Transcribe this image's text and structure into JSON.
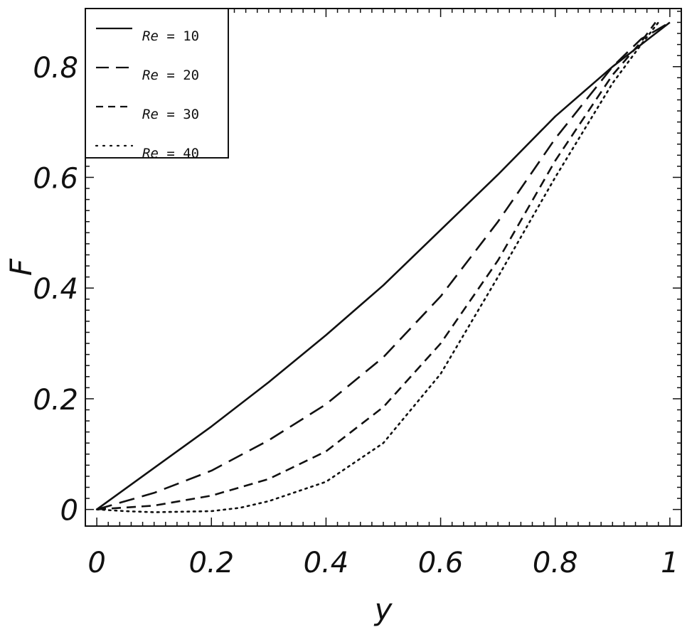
{
  "chart_data": {
    "type": "line",
    "title": "",
    "xlabel": "y",
    "ylabel": "F",
    "xlim": [
      -0.02,
      1.02
    ],
    "ylim": [
      -0.03,
      0.905
    ],
    "xticks": [
      0,
      0.2,
      0.4,
      0.6,
      0.8,
      1
    ],
    "xtick_labels": [
      "0",
      "0.2",
      "0.4",
      "0.6",
      "0.8",
      "1"
    ],
    "yticks": [
      0,
      0.2,
      0.4,
      0.6,
      0.8
    ],
    "ytick_labels": [
      "0",
      "0.2",
      "0.4",
      "0.6",
      "0.8"
    ],
    "grid": false,
    "legend_position": "top-left",
    "line_color": "#111111",
    "series": [
      {
        "name": "Re = 10",
        "name_var": "Re",
        "name_value": "10",
        "style": "solid",
        "x": [
          0,
          0.1,
          0.2,
          0.3,
          0.4,
          0.5,
          0.6,
          0.7,
          0.8,
          0.9,
          1.0
        ],
        "y": [
          0,
          0.075,
          0.15,
          0.23,
          0.315,
          0.405,
          0.505,
          0.605,
          0.71,
          0.8,
          0.88
        ]
      },
      {
        "name": "Re = 20",
        "name_var": "Re",
        "name_value": "20",
        "style": "longdash",
        "x": [
          0,
          0.1,
          0.2,
          0.3,
          0.4,
          0.5,
          0.6,
          0.7,
          0.8,
          0.9,
          0.95,
          1.0
        ],
        "y": [
          0,
          0.03,
          0.07,
          0.125,
          0.19,
          0.275,
          0.385,
          0.52,
          0.67,
          0.8,
          0.85,
          0.88
        ]
      },
      {
        "name": "Re = 30",
        "name_var": "Re",
        "name_value": "30",
        "style": "dash",
        "x": [
          0,
          0.1,
          0.2,
          0.3,
          0.4,
          0.5,
          0.6,
          0.7,
          0.8,
          0.9,
          0.95,
          0.975
        ],
        "y": [
          0,
          0.007,
          0.025,
          0.055,
          0.105,
          0.185,
          0.3,
          0.45,
          0.63,
          0.785,
          0.845,
          0.88
        ]
      },
      {
        "name": "Re = 40",
        "name_var": "Re",
        "name_value": "40",
        "style": "dotted",
        "x": [
          0,
          0.05,
          0.1,
          0.2,
          0.25,
          0.3,
          0.4,
          0.5,
          0.6,
          0.7,
          0.8,
          0.9,
          0.95,
          0.98
        ],
        "y": [
          0,
          -0.003,
          -0.005,
          -0.003,
          0.003,
          0.015,
          0.05,
          0.12,
          0.245,
          0.42,
          0.6,
          0.77,
          0.84,
          0.88
        ]
      }
    ]
  }
}
